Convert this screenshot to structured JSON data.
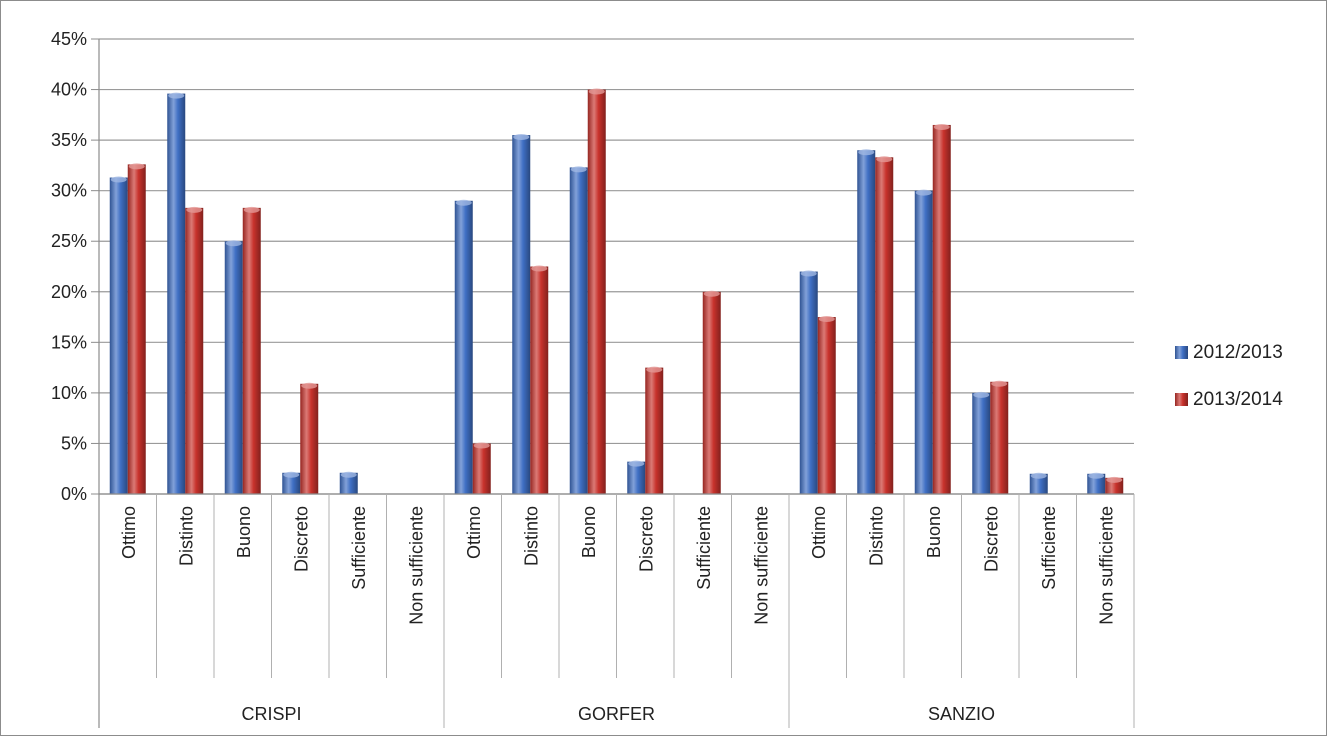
{
  "chart_data": {
    "type": "bar",
    "groups": [
      {
        "name": "CRISPI",
        "categories": [
          "Ottimo",
          "Distinto",
          "Buono",
          "Discreto",
          "Sufficiente",
          "Non sufficiente"
        ]
      },
      {
        "name": "GORFER",
        "categories": [
          "Ottimo",
          "Distinto",
          "Buono",
          "Discreto",
          "Sufficiente",
          "Non sufficiente"
        ]
      },
      {
        "name": "SANZIO",
        "categories": [
          "Ottimo",
          "Distinto",
          "Buono",
          "Discreto",
          "Sufficiente",
          "Non sufficiente"
        ]
      }
    ],
    "series": [
      {
        "name": "2012/2013",
        "color": "#3f6fc4",
        "values": [
          31.3,
          39.6,
          25.0,
          2.1,
          2.1,
          0,
          29.0,
          35.5,
          32.3,
          3.2,
          0,
          0,
          22.0,
          34.0,
          30.0,
          10.0,
          2.0,
          2.0
        ]
      },
      {
        "name": "2013/2014",
        "color": "#c8322c",
        "values": [
          32.6,
          28.3,
          28.3,
          10.9,
          0,
          0,
          5.0,
          22.5,
          40.0,
          12.5,
          20.0,
          0,
          17.5,
          33.3,
          36.5,
          11.1,
          0,
          1.6
        ]
      }
    ],
    "y_ticks": [
      "0%",
      "5%",
      "10%",
      "15%",
      "20%",
      "25%",
      "30%",
      "35%",
      "40%",
      "45%"
    ],
    "ylim": [
      0,
      45
    ],
    "y_unit": "%",
    "grid": true,
    "legend_position": "right"
  }
}
